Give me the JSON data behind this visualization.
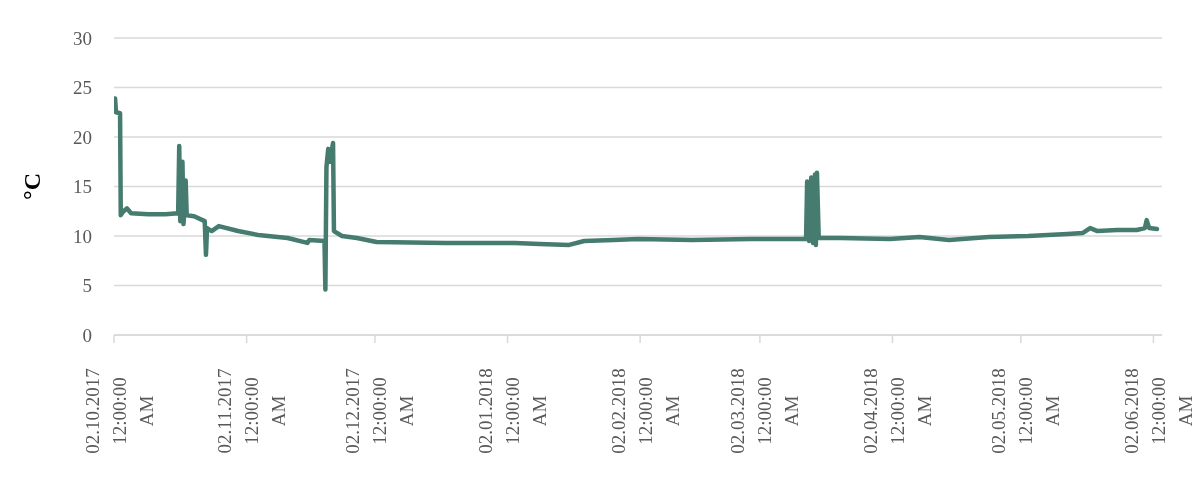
{
  "chart_data": {
    "type": "line",
    "ylabel": "°C",
    "x": [
      "2017-10-02T06:00",
      "2017-10-02T11:00",
      "2017-10-03T10:00",
      "2017-10-03T14:00",
      "2017-10-04",
      "2017-10-05",
      "2017-10-06",
      "2017-10-10",
      "2017-10-14",
      "2017-10-17",
      "2017-10-17T06:00",
      "2017-10-17T12:00",
      "2017-10-18",
      "2017-10-18T06:00",
      "2017-10-18T18:00",
      "2017-10-19",
      "2017-10-20T17:00",
      "2017-10-23T05:00",
      "2017-10-23T12:00",
      "2017-10-23T18:00",
      "2017-10-24T20:00",
      "2017-10-26T12:00",
      "2017-10-31",
      "2017-11-04T17:00",
      "2017-11-11T14:00",
      "2017-11-16T05:00",
      "2017-11-16T16:00",
      "2017-11-20T05:00",
      "2017-11-20T10:00",
      "2017-11-20T16:00",
      "2017-11-21T02:00",
      "2017-11-21T12:00",
      "2017-11-22T05:00",
      "2017-11-22T10:00",
      "2017-11-24T07:00",
      "2017-11-27T19:00",
      "2017-12-02T09:00",
      "2017-12-18T12:00",
      "2018-01-03T17:00",
      "2018-01-09T12:00",
      "2018-01-16T10:00",
      "2018-01-19T22:00",
      "2018-01-26T19:00",
      "2018-02-01T12:00",
      "2018-02-14T05:00",
      "2018-02-28",
      "2018-03-12T19:00",
      "2018-03-13T01:00",
      "2018-03-13T12:00",
      "2018-03-14",
      "2018-03-14T10:00",
      "2018-03-14T21:00",
      "2018-03-15T02:00",
      "2018-03-15T08:00",
      "2018-03-15T18:00",
      "2018-03-20T21:00",
      "2018-04-01T10:00",
      "2018-04-08T07:00",
      "2018-04-15T05:00",
      "2018-04-24T12:00",
      "2018-05-03T17:00",
      "2018-05-12T22:00",
      "2018-05-16T10:00",
      "2018-05-18T05:00",
      "2018-05-19T22:00",
      "2018-05-24T12:00",
      "2018-05-29T02:00",
      "2018-05-31",
      "2018-05-31T10:00",
      "2018-06-01",
      "2018-06-02T20:00"
    ],
    "series": [
      {
        "color": "#467b70",
        "values": [
          23.9,
          22.5,
          22.4,
          12.1,
          12.4,
          12.8,
          12.3,
          12.2,
          12.2,
          12.3,
          19.1,
          11.5,
          17.5,
          11.2,
          15.6,
          12.1,
          12.0,
          11.5,
          8.1,
          10.8,
          10.5,
          11.0,
          10.5,
          10.1,
          9.8,
          9.3,
          9.6,
          9.5,
          4.6,
          17.0,
          18.8,
          17.5,
          19.4,
          10.5,
          10.0,
          9.8,
          9.4,
          9.3,
          9.3,
          9.2,
          9.1,
          9.5,
          9.6,
          9.7,
          9.6,
          9.7,
          9.7,
          15.5,
          9.5,
          15.9,
          9.3,
          16.2,
          9.1,
          16.4,
          9.8,
          9.8,
          9.7,
          9.9,
          9.6,
          9.9,
          10.0,
          10.2,
          10.3,
          10.8,
          10.5,
          10.6,
          10.6,
          10.8,
          11.6,
          10.8,
          10.7
        ]
      }
    ],
    "xlim": [
      "2017-10-02",
      "2018-06-04"
    ],
    "xticks": [
      {
        "value": "2017-10-02",
        "label": "02.10.2017 12:00:00 AM"
      },
      {
        "value": "2017-11-02",
        "label": "02.11.2017 12:00:00 AM"
      },
      {
        "value": "2017-12-02",
        "label": "02.12.2017 12:00:00 AM"
      },
      {
        "value": "2018-01-02",
        "label": "02.01.2018 12:00:00 AM"
      },
      {
        "value": "2018-02-02",
        "label": "02.02.2018 12:00:00 AM"
      },
      {
        "value": "2018-03-02",
        "label": "02.03.2018 12:00:00 AM"
      },
      {
        "value": "2018-04-02",
        "label": "02.04.2018 12:00:00 AM"
      },
      {
        "value": "2018-05-02",
        "label": "02.05.2018 12:00:00 AM"
      },
      {
        "value": "2018-06-02",
        "label": "02.06.2018 12:00:00 AM"
      }
    ],
    "ylim": [
      0,
      30
    ],
    "yticks": [
      0,
      5,
      10,
      15,
      20,
      25,
      30
    ],
    "grid": "y",
    "marker": "none",
    "line_style": "solid"
  }
}
